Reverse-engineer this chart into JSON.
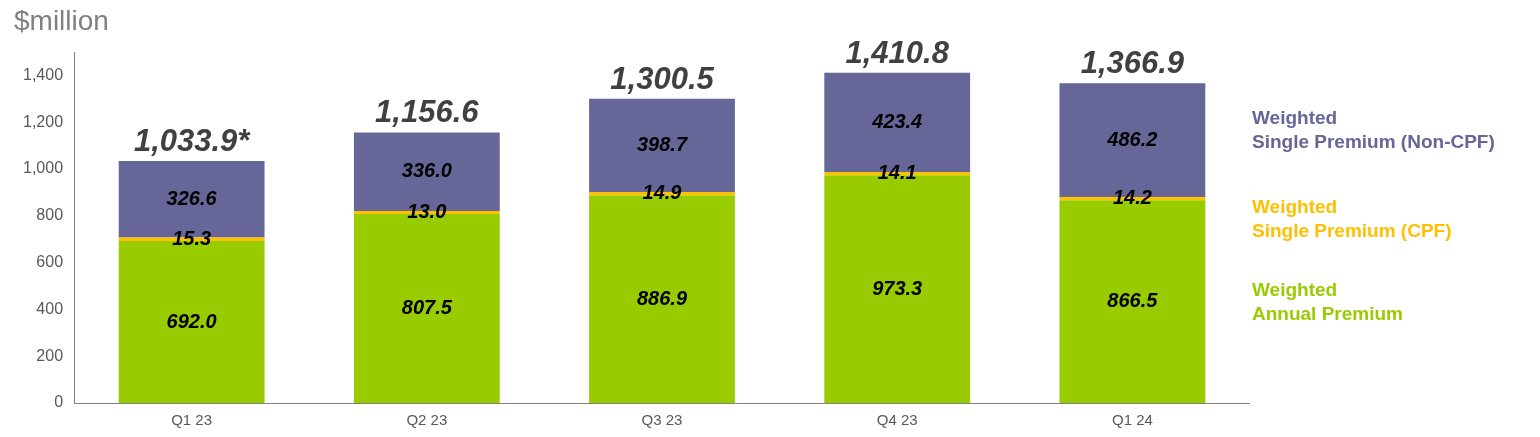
{
  "chart_data": {
    "type": "bar",
    "stacked": true,
    "ylabel": "$million",
    "categories": [
      "Q1 23",
      "Q2 23",
      "Q3 23",
      "Q4 23",
      "Q1 24"
    ],
    "series": [
      {
        "name": "Weighted Annual Premium",
        "color": "#99cc00",
        "values": [
          692.0,
          807.5,
          886.9,
          973.3,
          866.5
        ],
        "value_labels": [
          "692.0",
          "807.5",
          "886.9",
          "973.3",
          "866.5"
        ]
      },
      {
        "name": "Weighted Single Premium (CPF)",
        "color": "#ffc000",
        "values": [
          15.3,
          13.0,
          14.9,
          14.1,
          14.2
        ],
        "value_labels": [
          "15.3",
          "13.0",
          "14.9",
          "14.1",
          "14.2"
        ]
      },
      {
        "name": "Weighted Single Premium (Non-CPF)",
        "color": "#666699",
        "values": [
          326.6,
          336.0,
          398.7,
          423.4,
          486.2
        ],
        "value_labels": [
          "326.6",
          "336.0",
          "398.7",
          "423.4",
          "486.2"
        ]
      }
    ],
    "totals": [
      "1,033.9*",
      "1,156.6",
      "1,300.5",
      "1,410.8",
      "1,366.9"
    ],
    "ylim": [
      0,
      1500
    ],
    "yticks": [
      0,
      200,
      400,
      600,
      800,
      {
        "value": 1000,
        "label": "1,000"
      },
      {
        "value": 1200,
        "label": "1,200"
      },
      {
        "value": 1400,
        "label": "1,400"
      }
    ],
    "grid": false,
    "legend": "right"
  }
}
